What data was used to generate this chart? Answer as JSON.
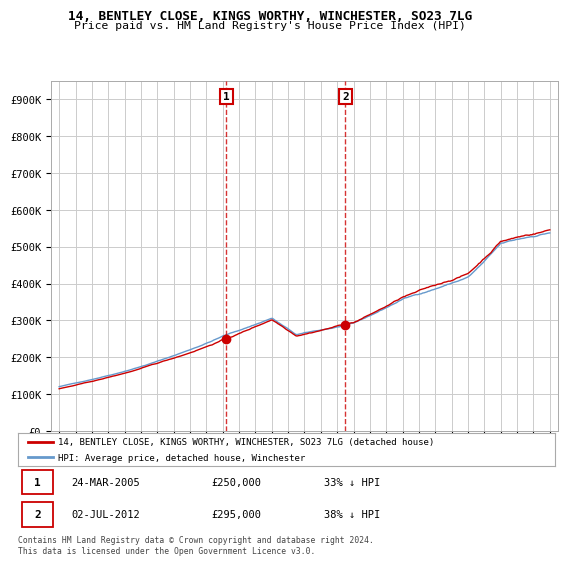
{
  "title_line1": "14, BENTLEY CLOSE, KINGS WORTHY, WINCHESTER, SO23 7LG",
  "title_line2": "Price paid vs. HM Land Registry's House Price Index (HPI)",
  "ylabel_ticks": [
    "£0",
    "£100K",
    "£200K",
    "£300K",
    "£400K",
    "£500K",
    "£600K",
    "£700K",
    "£800K",
    "£900K"
  ],
  "ytick_values": [
    0,
    100000,
    200000,
    300000,
    400000,
    500000,
    600000,
    700000,
    800000,
    900000
  ],
  "xlim_start": 1994.5,
  "xlim_end": 2025.5,
  "ylim": [
    0,
    950000
  ],
  "legend_line1": "14, BENTLEY CLOSE, KINGS WORTHY, WINCHESTER, SO23 7LG (detached house)",
  "legend_line2": "HPI: Average price, detached house, Winchester",
  "annotation1": {
    "label": "1",
    "date": "24-MAR-2005",
    "price": "£250,000",
    "pct": "33% ↓ HPI",
    "x_year": 2005.23,
    "y_val": 250000
  },
  "annotation2": {
    "label": "2",
    "date": "02-JUL-2012",
    "price": "£295,000",
    "pct": "38% ↓ HPI",
    "x_year": 2012.5,
    "y_val": 295000
  },
  "footer": "Contains HM Land Registry data © Crown copyright and database right 2024.\nThis data is licensed under the Open Government Licence v3.0.",
  "line_red_color": "#cc0000",
  "line_blue_color": "#6699cc",
  "bg_color": "#ffffff",
  "grid_color": "#cccccc",
  "annotation_vline_color": "#cc0000",
  "annotation_box_color": "#cc0000"
}
